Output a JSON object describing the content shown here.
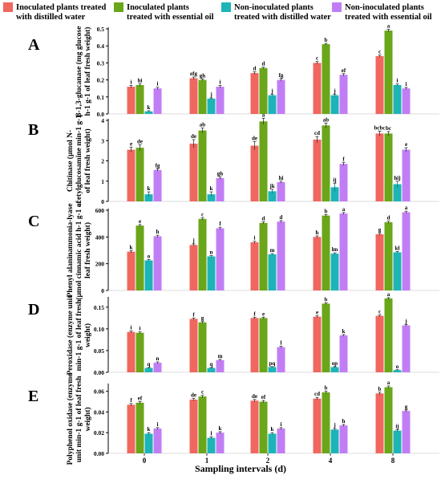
{
  "legend": [
    {
      "label_lines": [
        "Inoculated plants treated",
        "with distilled water"
      ],
      "color": "#f0675f"
    },
    {
      "label_lines": [
        "Inoculated plants",
        "treated with essential oil"
      ],
      "color": "#6aa619"
    },
    {
      "label_lines": [
        "Non-inoculated plants",
        "treated with distilled water"
      ],
      "color": "#1db4b8"
    },
    {
      "label_lines": [
        "Non-inoculated plants",
        "treated with essential oil"
      ],
      "color": "#c17ef4"
    }
  ],
  "xlabel": "Sampling intervals (d)",
  "chart_data": [
    {
      "type": "bar",
      "panel": "A",
      "ylabel_lines": [
        "β-1,3-glucanase (mg glucose",
        "h-1 g-1 of leaf fresh weight)"
      ],
      "categories": [
        "0",
        "1",
        "2",
        "4",
        "8"
      ],
      "ylim": [
        0,
        0.5
      ],
      "yticks": [
        "0.0",
        "0.1",
        "0.2",
        "0.3",
        "0.4",
        "0.5"
      ],
      "ytick_values": [
        0,
        0.1,
        0.2,
        0.3,
        0.4,
        0.5
      ],
      "series": [
        {
          "values": [
            0.16,
            0.21,
            0.24,
            0.3,
            0.34
          ],
          "errors": [
            0.008,
            0.007,
            0.008,
            0.008,
            0.006
          ],
          "letters": [
            "i",
            "efg",
            "d",
            "c",
            "c"
          ]
        },
        {
          "values": [
            0.17,
            0.2,
            0.27,
            0.41,
            0.49
          ],
          "errors": [
            0.008,
            0.006,
            0.005,
            0.005,
            0.008
          ],
          "letters": [
            "hi",
            "gh",
            "d",
            "b",
            "a"
          ]
        },
        {
          "values": [
            0.015,
            0.09,
            0.11,
            0.11,
            0.17
          ],
          "errors": [
            0.004,
            0.004,
            0.005,
            0.006,
            0.006
          ],
          "letters": [
            "k",
            "j",
            "j",
            "j",
            "i"
          ]
        },
        {
          "values": [
            0.15,
            0.16,
            0.2,
            0.23,
            0.15
          ],
          "errors": [
            0.007,
            0.008,
            0.008,
            0.007,
            0.006
          ],
          "letters": [
            "i",
            "i",
            "fg",
            "ef",
            "i"
          ]
        }
      ]
    },
    {
      "type": "bar",
      "panel": "B",
      "ylabel_lines": [
        "Chitinase (µmol N-",
        "acetylglucosamine min-1 g-1",
        "of leaf fresh weight)"
      ],
      "categories": [
        "0",
        "1",
        "2",
        "4",
        "8"
      ],
      "ylim": [
        0,
        4
      ],
      "yticks": [
        "0",
        "1",
        "2",
        "3",
        "4"
      ],
      "ytick_values": [
        0,
        1,
        2,
        3,
        4
      ],
      "series": [
        {
          "values": [
            2.55,
            2.85,
            2.75,
            3.05,
            3.35
          ],
          "errors": [
            0.12,
            0.2,
            0.2,
            0.15,
            0.12
          ],
          "letters": [
            "e",
            "de",
            "de",
            "cd",
            "bcbc"
          ]
        },
        {
          "values": [
            2.65,
            3.5,
            3.95,
            3.75,
            3.35
          ],
          "errors": [
            0.15,
            0.12,
            0.15,
            0.12,
            0.1
          ],
          "letters": [
            "de",
            "ab",
            "a",
            "ab",
            "bc"
          ]
        },
        {
          "values": [
            0.35,
            0.35,
            0.5,
            0.7,
            0.85
          ],
          "errors": [
            0.12,
            0.12,
            0.1,
            0.2,
            0.15
          ],
          "letters": [
            "k",
            "k",
            "jk",
            "ij",
            "hij"
          ]
        },
        {
          "values": [
            1.55,
            1.15,
            0.95,
            1.85,
            2.55
          ],
          "errors": [
            0.06,
            0.06,
            0.05,
            0.08,
            0.1
          ],
          "letters": [
            "fg",
            "gh",
            "hi",
            "f",
            "e"
          ]
        }
      ]
    },
    {
      "type": "bar",
      "panel": "C",
      "ylabel_lines": [
        "Phenyl alaninammonia-lyase",
        "(µmol cinnamic acid h-1 g-1 of",
        "leaf fresh weight)"
      ],
      "categories": [
        "0",
        "1",
        "2",
        "4",
        "8"
      ],
      "ylim": [
        0,
        600
      ],
      "yticks": [
        "0",
        "200",
        "400",
        "600"
      ],
      "ytick_values": [
        0,
        200,
        400,
        600
      ],
      "series": [
        {
          "values": [
            290,
            340,
            360,
            400,
            420
          ],
          "errors": [
            8,
            8,
            8,
            8,
            8
          ],
          "letters": [
            "k",
            "j",
            "i",
            "h",
            "g"
          ]
        },
        {
          "values": [
            485,
            535,
            505,
            560,
            510
          ],
          "errors": [
            8,
            8,
            8,
            8,
            8
          ],
          "letters": [
            "e",
            "c",
            "d",
            "b",
            "d"
          ]
        },
        {
          "values": [
            225,
            255,
            270,
            275,
            285
          ],
          "errors": [
            6,
            6,
            6,
            6,
            6
          ],
          "letters": [
            "o",
            "n",
            "m",
            "lm",
            "kl"
          ]
        },
        {
          "values": [
            405,
            465,
            515,
            575,
            585
          ],
          "errors": [
            8,
            8,
            8,
            8,
            8
          ],
          "letters": [
            "h",
            "f",
            "d",
            "a",
            "a"
          ]
        }
      ]
    },
    {
      "type": "bar",
      "panel": "D",
      "ylabel_lines": [
        "Peroxidase (enzyme unit",
        "min-1 g-1 of leaf fresh",
        "weight)"
      ],
      "categories": [
        "0",
        "1",
        "2",
        "4",
        "8"
      ],
      "ylim": [
        0,
        0.17
      ],
      "yticks": [
        "0.00",
        "0.05",
        "0.10",
        "0.15"
      ],
      "ytick_values": [
        0,
        0.05,
        0.1,
        0.15
      ],
      "series": [
        {
          "values": [
            0.093,
            0.123,
            0.125,
            0.128,
            0.13
          ],
          "errors": [
            0.002,
            0.002,
            0.002,
            0.002,
            0.002
          ],
          "letters": [
            "i",
            "f",
            "f",
            "e",
            "c"
          ]
        },
        {
          "values": [
            0.091,
            0.115,
            0.125,
            0.158,
            0.17
          ],
          "errors": [
            0.002,
            0.002,
            0.002,
            0.002,
            0.002
          ],
          "letters": [
            "i",
            "g",
            "e",
            "b",
            "a"
          ]
        },
        {
          "values": [
            0.01,
            0.01,
            0.012,
            0.012,
            0.005
          ],
          "errors": [
            0.001,
            0.001,
            0.001,
            0.001,
            0.001
          ],
          "letters": [
            "q",
            "q",
            "pq",
            "op",
            "o"
          ]
        },
        {
          "values": [
            0.022,
            0.028,
            0.058,
            0.085,
            0.108
          ],
          "errors": [
            0.002,
            0.002,
            0.002,
            0.002,
            0.002
          ],
          "letters": [
            "n",
            "m",
            "l",
            "k",
            "j"
          ]
        }
      ]
    },
    {
      "type": "bar",
      "panel": "E",
      "ylabel_lines": [
        "Polyphenol oxidase (enzyme",
        "unit min-1 g-1 of leaf fresh",
        "weight)"
      ],
      "categories": [
        "0",
        "1",
        "2",
        "4",
        "8"
      ],
      "ylim": [
        0,
        0.066
      ],
      "yticks": [
        "0.00",
        "0.02",
        "0.04",
        "0.06"
      ],
      "ytick_values": [
        0,
        0.02,
        0.04,
        0.06
      ],
      "series": [
        {
          "values": [
            0.047,
            0.052,
            0.051,
            0.053,
            0.058
          ],
          "errors": [
            0.0012,
            0.0012,
            0.0012,
            0.0012,
            0.0012
          ],
          "letters": [
            "f",
            "de",
            "de",
            "cd",
            "b"
          ]
        },
        {
          "values": [
            0.049,
            0.055,
            0.05,
            0.059,
            0.064
          ],
          "errors": [
            0.0012,
            0.0012,
            0.0012,
            0.0012,
            0.0012
          ],
          "letters": [
            "ef",
            "c",
            "ef",
            "b",
            "a"
          ]
        },
        {
          "values": [
            0.019,
            0.015,
            0.019,
            0.023,
            0.022
          ],
          "errors": [
            0.001,
            0.001,
            0.001,
            0.001,
            0.001
          ],
          "letters": [
            "k",
            "l",
            "k",
            "j",
            "ij"
          ]
        },
        {
          "values": [
            0.024,
            0.02,
            0.024,
            0.027,
            0.041
          ],
          "errors": [
            0.001,
            0.001,
            0.001,
            0.001,
            0.001
          ],
          "letters": [
            "i",
            "k",
            "i",
            "h",
            "g"
          ]
        }
      ]
    }
  ]
}
